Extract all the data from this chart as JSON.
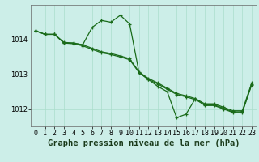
{
  "background_color": "#cceee8",
  "grid_color": "#aaddcc",
  "line_color": "#1a6b1a",
  "xlabel": "Graphe pression niveau de la mer (hPa)",
  "xlabel_fontsize": 7.5,
  "tick_fontsize": 6,
  "xlim": [
    -0.5,
    23.5
  ],
  "ylim": [
    1011.5,
    1015.0
  ],
  "yticks": [
    1012,
    1013,
    1014
  ],
  "xticks": [
    0,
    1,
    2,
    3,
    4,
    5,
    6,
    7,
    8,
    9,
    10,
    11,
    12,
    13,
    14,
    15,
    16,
    17,
    18,
    19,
    20,
    21,
    22,
    23
  ],
  "series1": [
    1014.25,
    1014.15,
    1014.15,
    1013.9,
    1013.9,
    1013.85,
    1014.35,
    1014.55,
    1014.5,
    1014.7,
    1014.45,
    1013.05,
    1012.85,
    1012.65,
    1012.5,
    1011.75,
    1011.85,
    1012.3,
    1012.1,
    1012.1,
    1012.0,
    1011.9,
    1011.9,
    1012.7
  ],
  "series2": [
    1014.25,
    1014.15,
    1014.15,
    1013.9,
    1013.88,
    1013.82,
    1013.72,
    1013.62,
    1013.57,
    1013.5,
    1013.42,
    1013.05,
    1012.85,
    1012.72,
    1012.57,
    1012.42,
    1012.35,
    1012.27,
    1012.12,
    1012.12,
    1012.02,
    1011.92,
    1011.92,
    1012.72
  ],
  "series3": [
    1014.25,
    1014.15,
    1014.15,
    1013.92,
    1013.9,
    1013.85,
    1013.75,
    1013.65,
    1013.6,
    1013.53,
    1013.45,
    1013.07,
    1012.88,
    1012.75,
    1012.6,
    1012.45,
    1012.38,
    1012.3,
    1012.15,
    1012.15,
    1012.05,
    1011.95,
    1011.95,
    1012.75
  ]
}
